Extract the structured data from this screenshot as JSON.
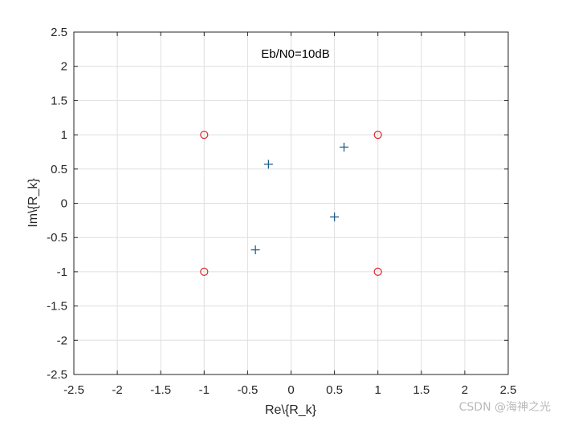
{
  "chart_data": {
    "type": "scatter",
    "title": "Eb/N0=10dB",
    "xlabel": "Re\\{R_k}",
    "ylabel": "Im\\{R_k}",
    "xlim": [
      -2.5,
      2.5
    ],
    "ylim": [
      -2.5,
      2.5
    ],
    "xticks": [
      -2.5,
      -2,
      -1.5,
      -1,
      -0.5,
      0,
      0.5,
      1,
      1.5,
      2,
      2.5
    ],
    "yticks": [
      -2.5,
      -2,
      -1.5,
      -1,
      -0.5,
      0,
      0.5,
      1,
      1.5,
      2,
      2.5
    ],
    "xtick_labels": [
      "-2.5",
      "-2",
      "-1.5",
      "-1",
      "-0.5",
      "0",
      "0.5",
      "1",
      "1.5",
      "2",
      "2.5"
    ],
    "ytick_labels": [
      "-2.5",
      "-2",
      "-1.5",
      "-1",
      "-0.5",
      "0",
      "0.5",
      "1",
      "1.5",
      "2",
      "2.5"
    ],
    "grid": true,
    "series": [
      {
        "marker": "plus",
        "color": "#1f5f8b",
        "points": [
          {
            "x": -0.26,
            "y": 0.57
          },
          {
            "x": 0.61,
            "y": 0.82
          },
          {
            "x": 0.5,
            "y": -0.2
          },
          {
            "x": -0.41,
            "y": -0.68
          }
        ]
      },
      {
        "marker": "circle",
        "color": "#e0262b",
        "points": [
          {
            "x": -1,
            "y": 1
          },
          {
            "x": 1,
            "y": 1
          },
          {
            "x": -1,
            "y": -1
          },
          {
            "x": 1,
            "y": -1
          }
        ]
      }
    ]
  },
  "watermark": "CSDN @海神之光"
}
